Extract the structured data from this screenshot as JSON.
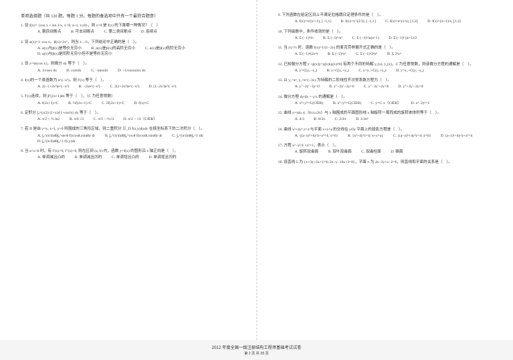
{
  "header": "单项选择题（共 120 题，每题 1 分。每题的备选项中只有一个最符合题意）",
  "left": [
    {
      "n": "1.",
      "stem": "设 f(x)= {cos x + sin 1/x, x<0; a+1, x≥0}，则 x=0 是 f(x) 的下面哪一种情况？（　）",
      "opts": [
        "A. 跳跃间断点",
        "B. 可去间断点",
        "C. 第二类间断点",
        "D. 连续点"
      ]
    },
    {
      "n": "2.",
      "stem": "设 α(x)=1−cos x，β(x)=2x²，则当 x→0，下列结论中正确的是（　）。",
      "opts": [
        "A. α(x)与β(x)是等价无穷小",
        "B. α(x)是β(x)的高阶无穷小",
        "C. α(x)是β(x)低阶无穷小",
        "D. α(x)与β(x)是同阶无穷小但不是等价无穷小"
      ]
    },
    {
      "n": "3.",
      "stem": "设 y=ln(cos x)，则微分 dy 等于（　）。",
      "opts": [
        "A. 1/cosx dx",
        "B. cotxdx",
        "C. −tanxdx",
        "D. −1/cosxsinx dx"
      ]
    },
    {
      "n": "4.",
      "stem": "f(x)的一个原函数为 e^(−x²)，则 f′(x) 等于（　）。",
      "opts": [
        "A. 2(−1+2x²)e^(−x²)",
        "B. −2xe^(−x²)",
        "C. 2(1+2x²)e^(−x²)",
        "D. (1−2x²)e^(−x²)"
      ]
    },
    {
      "n": "5.",
      "stem": "f′(x)连续，则 ∫f′(2x+1)dx 等于（　）。（C 为任意常数）",
      "opts": [
        "A. f(2x+1)+C",
        "B. ½f(2x+1)+C",
        "C. 2f(2x+1)+C",
        "D. f(x)+C"
      ]
    },
    {
      "n": "6.",
      "stem": "定积分 ∫₀^(π/2) (1+x)/(1+cos²x) dx 等于（　）。",
      "opts": [
        "A. π/2 + ½ ln2",
        "B. π/6 √3",
        "C. π/3 − ½√3",
        "D. π/2 − √2（C∈R）"
      ]
    },
    {
      "n": "7.",
      "stem": "若 D 是由 y=x, x=1, y=0 所围成的三角形区域，则二重积分 ∬_D f(x,y)dxdy 在极坐标系下的二次积分（　）。",
      "opts": [
        "A. ∫₀^(π/4)dθ∫₀^secθ f(rcosθ,rsinθ)r dr",
        "B. ∫₀^(π/4)dθ∫₀^cscθ f(rcosθ,rsinθ)r dr",
        "C. ∫₀^(π/4)dθ∫₀^1 rdr",
        "D. ∫₀^(π/4)dθ∫₀^1 f(r,y)dr"
      ]
    },
    {
      "n": "8.",
      "stem": "当 a<x<b 时，有 f′(x)>0, f″(x)<0, 则在区间 (a, b) 内，函数 y=f(x) 的图形沿 x 轴正向是（　）。",
      "opts": [
        "A. 单调减且凸的",
        "B. 单调减且凹的",
        "C. 单调增且凸的",
        "D. 单调增且凹的"
      ]
    }
  ],
  "right": [
    {
      "n": "9.",
      "stem": "下列函数在给定区间上不满足拉格朗日定理条件的是（　）。",
      "opts": [
        "A. f(x)=x/(x²+1), [−1,1]",
        "B. f(x)=x^(2/3), [−1,1]",
        "C. f(x)=e^(1/x), [1,2]",
        "D. f(x)=(x+1)/x, [1,2]"
      ]
    },
    {
      "n": "10.",
      "stem": "下列级数中，条件收敛的是（　）。",
      "opts": [
        "A. Σ (−1)ⁿ/n",
        "B. Σ (−1)ⁿ/n²",
        "C. Σ (−1)ⁿ/n(n+1)",
        "D. Σ (−1)ⁿ (n+1)/2"
      ]
    },
    {
      "n": "11.",
      "stem": "当 |x|<½ 时，函数 f(x)=1/(1−2x) 的麦克劳林展开式正确的是（　）。",
      "opts": [
        "A. Σ (−1)ⁿ(2xⁿ)",
        "B. Σ (−2)ⁿxⁿ",
        "C. Σ (−1)ⁿ2ⁿxⁿ",
        "D. Σ 2ⁿxⁿ"
      ]
    },
    {
      "n": "12.",
      "stem": "已知微分方程 y′+p(x)y=q(x)(q(x)≠0) 有两个不同的特解 y₁(x), y₂(x)，C 为任意常数，则该微分方程的通解是（　）。",
      "opts": [
        "A. y=C(y₁−y₂)",
        "B. y=C(y₁+y₂)",
        "C. y=y₁+C(y₁+y₂)",
        "D. y=y₁+C(y₁−y₂)"
      ]
    },
    {
      "n": "13.",
      "stem": "以 y₁=eˣ, y₂=e^(−3x) 为特解的二阶线性齐次常系数方程为（　）。",
      "opts": [
        "A. y″−2y′−3y=0",
        "B. y″+2y′−3y=0",
        "C. y″−3y′+2y=0",
        "D. y″+3y′−2y=0"
      ]
    },
    {
      "n": "14.",
      "stem": "微分方程 dy/dx = y/x 的通解是（　）。",
      "opts": [
        "A. x²+y²=C(C∈R)",
        "B. x²−y²=C(C∈R)",
        "C. y=C·x（C∈R）",
        "D. x²−2y²=1"
      ]
    },
    {
      "n": "15.",
      "stem": "曲线 y=|sin x|（0≤x≤2π）与 x 轴围成的平面图形绕 x 轴旋转一周而成的旋转体体积等于（　）。",
      "opts": [
        "A. 4/3",
        "B. 8/3π",
        "C. 2/3π",
        "D. 2/3π²"
      ]
    },
    {
      "n": "16.",
      "stem": "曲线 x²+4y² z=4 与平面 x+z=a 的交线在 yOz 平面上的投影方程是（　）。",
      "opts": [
        "A. {(a−z)²+4y²z+z²=4; x=0}",
        "B. {x²+4y²z=4; x+z=a}",
        "C. {(a−z)²+4y²z=4; z=0}",
        "D. (a−z)²+4y²z+z²=4"
      ]
    },
    {
      "n": "17.",
      "stem": "方程 x²−y²/4 +z²=1，表示（　）。",
      "opts": [
        "A. 旋转双曲面",
        "B. 双叶双曲面",
        "C. 双曲柱面",
        "D. 锥面"
      ]
    },
    {
      "n": "18.",
      "stem": "设直线 L 为 {x+3y+2z+1=0; 2x−y−10z+3=0}，平面 π 为 4x−2y+z−2=0，则直线和平面的关系是（　）。",
      "opts": []
    }
  ],
  "footer_title": "2012 年度全国一级注册结构工程师基础考试试卷",
  "footer_sub": "第 2 页 共 35 页"
}
